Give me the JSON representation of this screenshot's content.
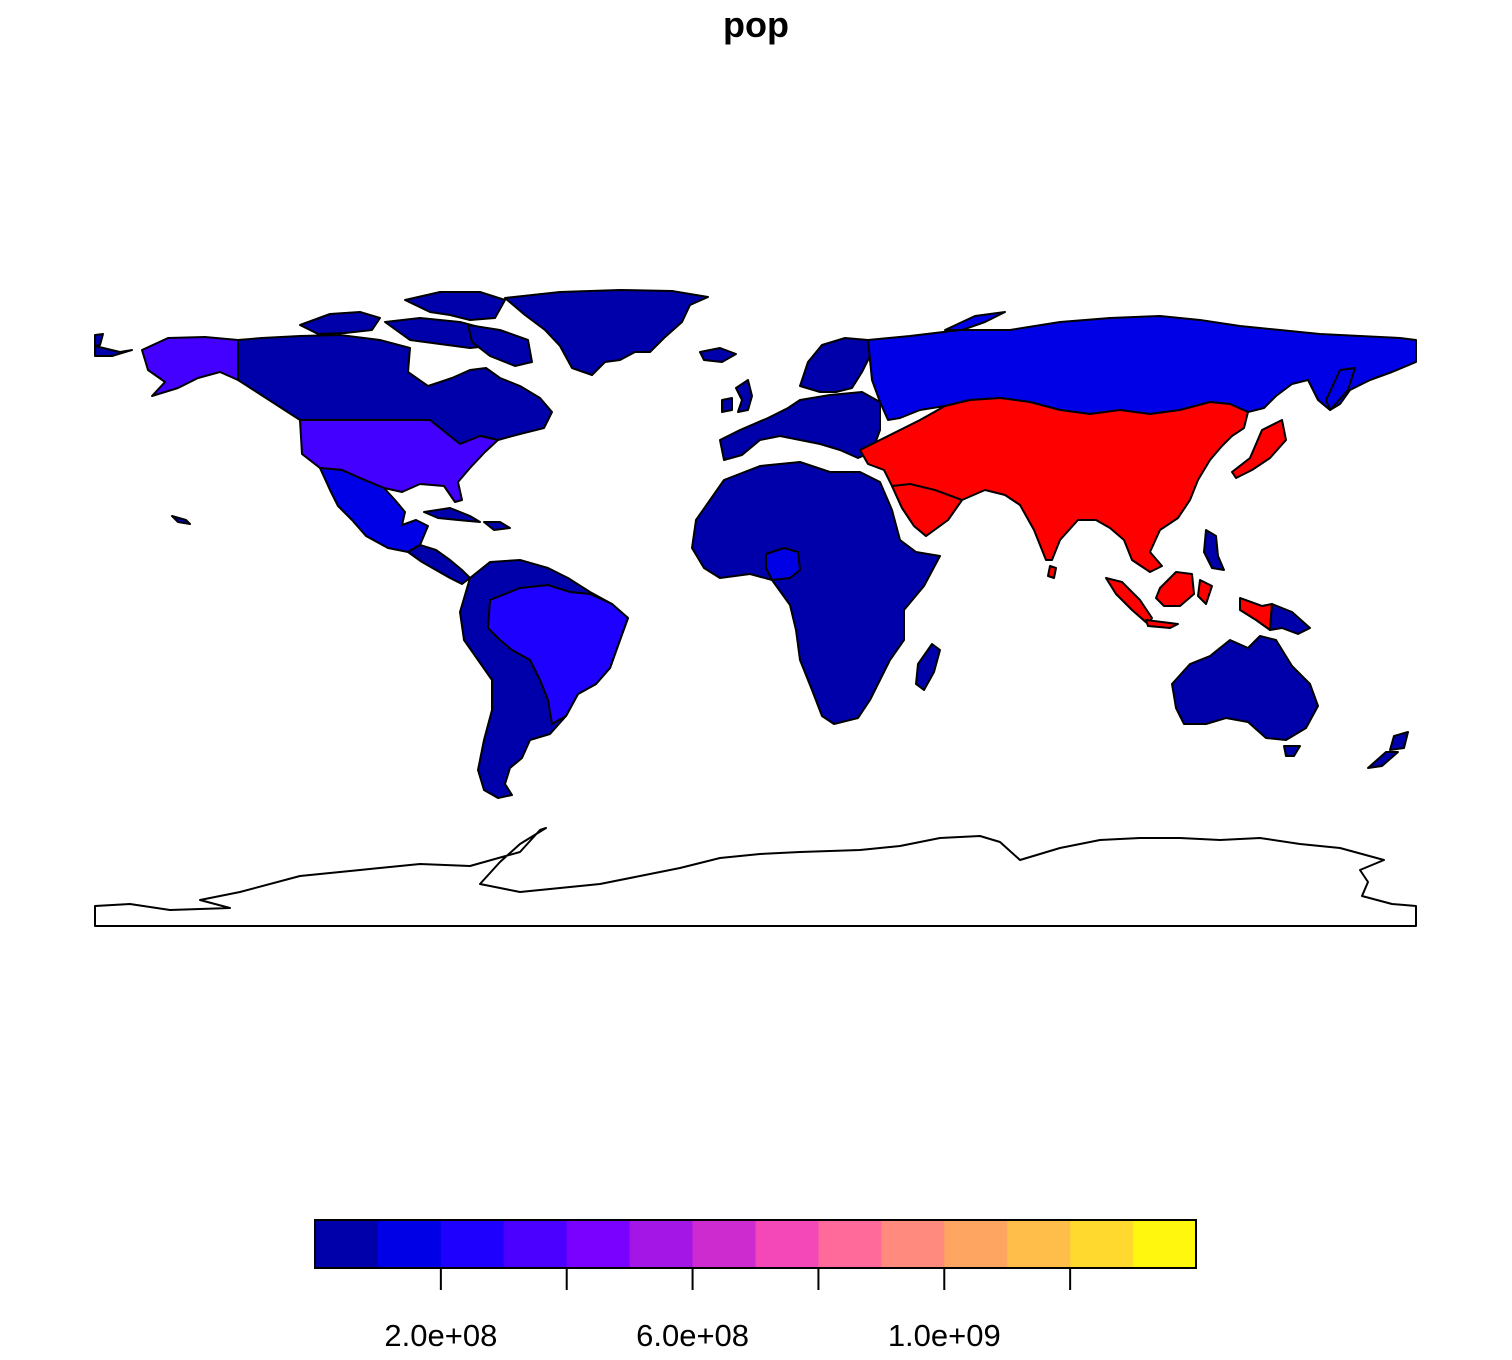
{
  "title": "pop",
  "legend": {
    "palette": [
      "#0000AA",
      "#0000E6",
      "#1E00FF",
      "#4B00FF",
      "#7A00FF",
      "#A316E6",
      "#CD2BD0",
      "#F447B8",
      "#FF6A9A",
      "#FF8A7D",
      "#FFA562",
      "#FFBD4A",
      "#FFD92E",
      "#FFF70D"
    ],
    "min": 0,
    "max": 1400000000,
    "ticks": [
      {
        "value": 200000000,
        "label": "2.0e+08"
      },
      {
        "value": 400000000,
        "label": ""
      },
      {
        "value": 600000000,
        "label": "6.0e+08"
      },
      {
        "value": 800000000,
        "label": ""
      },
      {
        "value": 1000000000,
        "label": "1.0e+09"
      },
      {
        "value": 1200000000,
        "label": ""
      }
    ]
  },
  "region_colors": {
    "high_population": "#FF0000",
    "russia": "#0000E6",
    "usa": "#4400FF",
    "alaska": "#4400FF",
    "brazil": "#1E00FF",
    "mexico": "#0000E6",
    "nigeria": "#0000E6",
    "default": "#0000AA",
    "antarctica": "#FFFFFF"
  }
}
